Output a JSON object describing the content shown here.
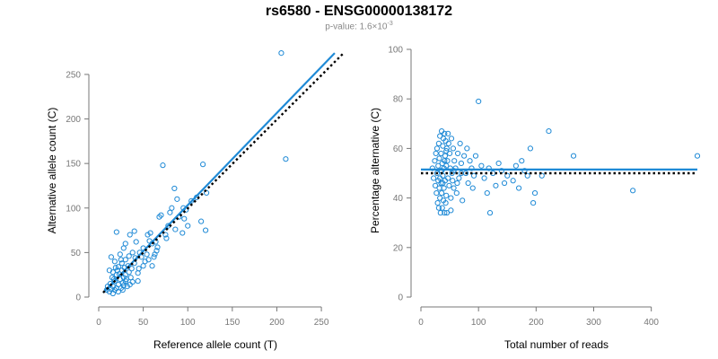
{
  "header": {
    "title": "rs6580 - ENSG00000138172",
    "pvalue_prefix": "p-value: 1.6×10",
    "pvalue_exp": "-3"
  },
  "colors": {
    "points": "#1f8ad6",
    "fit_line": "#1f8ad6",
    "ref_line": "#000000",
    "axis": "#777777"
  },
  "chart_data": [
    {
      "type": "scatter",
      "title": "",
      "xlabel": "Reference allele count (T)",
      "ylabel": "Alternative allele count (C)",
      "xlim": [
        0,
        260
      ],
      "ylim": [
        0,
        260
      ],
      "xticks": [
        0,
        50,
        100,
        150,
        200,
        250
      ],
      "yticks": [
        0,
        50,
        100,
        150,
        200,
        250
      ],
      "fit_line": {
        "x1": 5,
        "y1": 5,
        "x2": 265,
        "y2": 274
      },
      "reference_line": {
        "x1": 5,
        "y1": 5,
        "x2": 275,
        "y2": 274
      },
      "points": [
        [
          205,
          274
        ],
        [
          210,
          155
        ],
        [
          72,
          148
        ],
        [
          117,
          149
        ],
        [
          121,
          117
        ],
        [
          85,
          122
        ],
        [
          88,
          110
        ],
        [
          95,
          100
        ],
        [
          98,
          98
        ],
        [
          115,
          85
        ],
        [
          120,
          75
        ],
        [
          100,
          80
        ],
        [
          80,
          95
        ],
        [
          70,
          92
        ],
        [
          68,
          90
        ],
        [
          86,
          76
        ],
        [
          94,
          72
        ],
        [
          58,
          72
        ],
        [
          55,
          70
        ],
        [
          20,
          73
        ],
        [
          40,
          74
        ],
        [
          35,
          70
        ],
        [
          60,
          60
        ],
        [
          42,
          62
        ],
        [
          30,
          60
        ],
        [
          28,
          55
        ],
        [
          50,
          55
        ],
        [
          65,
          52
        ],
        [
          63,
          48
        ],
        [
          46,
          50
        ],
        [
          38,
          50
        ],
        [
          24,
          48
        ],
        [
          14,
          45
        ],
        [
          18,
          40
        ],
        [
          30,
          42
        ],
        [
          40,
          38
        ],
        [
          52,
          40
        ],
        [
          60,
          35
        ],
        [
          33,
          35
        ],
        [
          22,
          34
        ],
        [
          12,
          30
        ],
        [
          16,
          28
        ],
        [
          26,
          30
        ],
        [
          34,
          28
        ],
        [
          44,
          27
        ],
        [
          20,
          25
        ],
        [
          28,
          22
        ],
        [
          36,
          22
        ],
        [
          15,
          22
        ],
        [
          24,
          20
        ],
        [
          18,
          18
        ],
        [
          30,
          18
        ],
        [
          38,
          17
        ],
        [
          44,
          18
        ],
        [
          13,
          15
        ],
        [
          22,
          14
        ],
        [
          28,
          13
        ],
        [
          16,
          12
        ],
        [
          32,
          12
        ],
        [
          20,
          10
        ],
        [
          25,
          10
        ],
        [
          14,
          9
        ],
        [
          18,
          8
        ],
        [
          27,
          8
        ],
        [
          22,
          6
        ],
        [
          12,
          6
        ],
        [
          16,
          4
        ],
        [
          10,
          12
        ],
        [
          9,
          8
        ],
        [
          30,
          25
        ],
        [
          26,
          38
        ],
        [
          34,
          46
        ],
        [
          48,
          45
        ],
        [
          54,
          48
        ],
        [
          37,
          32
        ],
        [
          41,
          44
        ],
        [
          29,
          33
        ],
        [
          19,
          33
        ],
        [
          23,
          26
        ],
        [
          27,
          16
        ],
        [
          31,
          20
        ],
        [
          35,
          14
        ],
        [
          17,
          20
        ],
        [
          21,
          30
        ],
        [
          25,
          42
        ],
        [
          45,
          32
        ],
        [
          50,
          35
        ],
        [
          56,
          42
        ],
        [
          62,
          45
        ],
        [
          66,
          56
        ],
        [
          75,
          70
        ],
        [
          78,
          80
        ],
        [
          90,
          90
        ],
        [
          104,
          108
        ],
        [
          82,
          100
        ],
        [
          96,
          88
        ],
        [
          110,
          112
        ],
        [
          76,
          66
        ],
        [
          64,
          62
        ],
        [
          57,
          63
        ]
      ]
    },
    {
      "type": "scatter",
      "title": "",
      "xlabel": "Total number of reads",
      "ylabel": "Percentage alternative (C)",
      "xlim": [
        0,
        480
      ],
      "ylim": [
        0,
        100
      ],
      "xticks": [
        0,
        100,
        200,
        300,
        400
      ],
      "yticks": [
        0,
        20,
        40,
        60,
        80,
        100
      ],
      "fit_line": {
        "x1": 0,
        "y1": 51.5,
        "x2": 480,
        "y2": 51.5
      },
      "reference_line": {
        "x1": 0,
        "y1": 50,
        "x2": 480,
        "y2": 50
      },
      "points": [
        [
          20,
          52
        ],
        [
          22,
          48
        ],
        [
          24,
          55
        ],
        [
          25,
          45
        ],
        [
          26,
          58
        ],
        [
          27,
          42
        ],
        [
          28,
          60
        ],
        [
          28,
          50
        ],
        [
          29,
          38
        ],
        [
          30,
          53
        ],
        [
          30,
          47
        ],
        [
          31,
          62
        ],
        [
          31,
          36
        ],
        [
          32,
          56
        ],
        [
          32,
          44
        ],
        [
          33,
          65
        ],
        [
          33,
          40
        ],
        [
          34,
          51
        ],
        [
          34,
          34
        ],
        [
          35,
          58
        ],
        [
          35,
          46
        ],
        [
          36,
          67
        ],
        [
          36,
          42
        ],
        [
          37,
          54
        ],
        [
          37,
          36
        ],
        [
          38,
          61
        ],
        [
          38,
          49
        ],
        [
          39,
          64
        ],
        [
          39,
          39
        ],
        [
          40,
          52
        ],
        [
          40,
          44
        ],
        [
          41,
          66
        ],
        [
          41,
          34
        ],
        [
          42,
          57
        ],
        [
          42,
          47
        ],
        [
          43,
          63
        ],
        [
          43,
          38
        ],
        [
          44,
          53
        ],
        [
          44,
          41
        ],
        [
          45,
          60
        ],
        [
          45,
          34
        ],
        [
          46,
          55
        ],
        [
          47,
          48
        ],
        [
          48,
          62
        ],
        [
          49,
          45
        ],
        [
          50,
          58
        ],
        [
          51,
          52
        ],
        [
          52,
          40
        ],
        [
          53,
          64
        ],
        [
          54,
          50
        ],
        [
          55,
          47
        ],
        [
          56,
          60
        ],
        [
          57,
          44
        ],
        [
          58,
          55
        ],
        [
          60,
          52
        ],
        [
          62,
          42
        ],
        [
          64,
          58
        ],
        [
          66,
          48
        ],
        [
          68,
          62
        ],
        [
          70,
          54
        ],
        [
          72,
          39
        ],
        [
          75,
          57
        ],
        [
          78,
          50
        ],
        [
          80,
          60
        ],
        [
          82,
          46
        ],
        [
          85,
          55
        ],
        [
          88,
          52
        ],
        [
          90,
          44
        ],
        [
          95,
          57
        ],
        [
          100,
          79
        ],
        [
          105,
          53
        ],
        [
          110,
          48
        ],
        [
          115,
          42
        ],
        [
          120,
          34
        ],
        [
          125,
          50
        ],
        [
          130,
          45
        ],
        [
          135,
          54
        ],
        [
          140,
          51
        ],
        [
          150,
          49
        ],
        [
          160,
          47
        ],
        [
          165,
          53
        ],
        [
          170,
          44
        ],
        [
          175,
          55
        ],
        [
          180,
          51
        ],
        [
          185,
          49
        ],
        [
          190,
          60
        ],
        [
          195,
          38
        ],
        [
          198,
          42
        ],
        [
          210,
          49
        ],
        [
          222,
          67
        ],
        [
          265,
          57
        ],
        [
          368,
          43
        ],
        [
          480,
          57
        ],
        [
          47,
          66
        ],
        [
          52,
          35
        ],
        [
          38,
          46
        ],
        [
          41,
          55
        ],
        [
          36,
          51
        ],
        [
          33,
          48
        ],
        [
          44,
          59
        ],
        [
          57,
          51
        ],
        [
          63,
          46
        ],
        [
          70,
          50
        ],
        [
          92,
          49
        ],
        [
          118,
          52
        ],
        [
          145,
          46
        ]
      ]
    }
  ]
}
